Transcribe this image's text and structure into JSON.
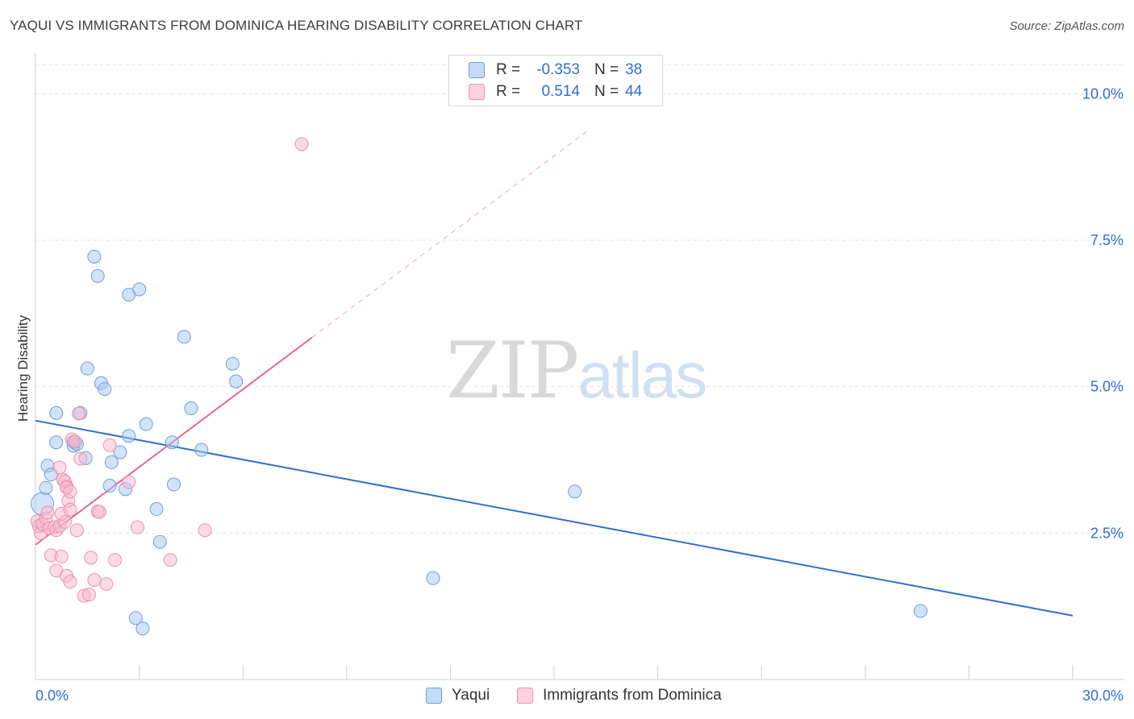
{
  "header": {
    "title": "YAQUI VS IMMIGRANTS FROM DOMINICA HEARING DISABILITY CORRELATION CHART",
    "source": "Source: ZipAtlas.com"
  },
  "watermark": {
    "zip": "ZIP",
    "atlas": "atlas"
  },
  "legend": {
    "r_label": "R =",
    "n_label": "N =",
    "rows": [
      {
        "r": "-0.353",
        "n": "38"
      },
      {
        "r": "0.514",
        "n": "44"
      }
    ]
  },
  "colors": {
    "yaqui_fill": "#a8c8ef",
    "yaqui_stroke": "#6a9fe0",
    "yaqui_line": "#2f6fce",
    "dominica_fill": "#f7b8cb",
    "dominica_stroke": "#ee8fae",
    "dominica_line": "#e8668f",
    "grid": "#e4e4e4",
    "tick_text": "#2f6fce"
  },
  "chart_data": {
    "type": "scatter",
    "title": "YAQUI VS IMMIGRANTS FROM DOMINICA HEARING DISABILITY CORRELATION CHART",
    "xlabel": "",
    "ylabel": "Hearing Disability",
    "xlim": [
      0,
      30
    ],
    "ylim": [
      0,
      10.5
    ],
    "x_tick_labels": [
      "0.0%",
      "30.0%"
    ],
    "y_ticks": [
      2.5,
      5.0,
      7.5,
      10.0
    ],
    "y_tick_labels": [
      "2.5%",
      "5.0%",
      "7.5%",
      "10.0%"
    ],
    "series": [
      {
        "name": "Yaqui",
        "r": -0.353,
        "n": 38,
        "trend": {
          "x": [
            0,
            30
          ],
          "y": [
            4.42,
            1.09
          ]
        },
        "points": [
          [
            0.2,
            3.0
          ],
          [
            0.3,
            3.27
          ],
          [
            0.35,
            3.65
          ],
          [
            0.45,
            3.5
          ],
          [
            0.6,
            4.55
          ],
          [
            0.6,
            4.05
          ],
          [
            1.1,
            3.99
          ],
          [
            1.2,
            4.02
          ],
          [
            1.1,
            4.06
          ],
          [
            1.3,
            4.55
          ],
          [
            1.45,
            3.78
          ],
          [
            1.5,
            5.31
          ],
          [
            1.7,
            7.22
          ],
          [
            1.8,
            6.89
          ],
          [
            1.9,
            5.06
          ],
          [
            2.0,
            4.96
          ],
          [
            2.2,
            3.71
          ],
          [
            2.15,
            3.31
          ],
          [
            2.45,
            3.88
          ],
          [
            2.6,
            3.25
          ],
          [
            2.7,
            4.16
          ],
          [
            2.7,
            6.57
          ],
          [
            3.0,
            6.66
          ],
          [
            3.2,
            4.36
          ],
          [
            3.5,
            2.91
          ],
          [
            3.6,
            2.35
          ],
          [
            2.9,
            1.05
          ],
          [
            3.1,
            0.87
          ],
          [
            3.95,
            4.05
          ],
          [
            4.0,
            3.33
          ],
          [
            4.3,
            5.85
          ],
          [
            4.5,
            4.63
          ],
          [
            4.8,
            3.92
          ],
          [
            5.7,
            5.39
          ],
          [
            5.8,
            5.09
          ],
          [
            11.5,
            1.73
          ],
          [
            15.6,
            3.21
          ],
          [
            25.6,
            1.17
          ]
        ]
      },
      {
        "name": "Immigrants from Dominica",
        "r": 0.514,
        "n": 44,
        "trend": {
          "x": [
            0,
            8.0
          ],
          "y": [
            2.3,
            5.84
          ]
        },
        "trend_dashed": {
          "x": [
            8.0,
            16.0
          ],
          "y": [
            5.84,
            9.38
          ]
        },
        "points": [
          [
            0.05,
            2.7
          ],
          [
            0.1,
            2.62
          ],
          [
            0.15,
            2.5
          ],
          [
            0.2,
            2.65
          ],
          [
            0.3,
            2.75
          ],
          [
            0.35,
            2.85
          ],
          [
            0.4,
            2.58
          ],
          [
            0.45,
            2.12
          ],
          [
            0.55,
            2.6
          ],
          [
            0.6,
            2.55
          ],
          [
            0.7,
            2.62
          ],
          [
            0.75,
            2.1
          ],
          [
            0.6,
            1.86
          ],
          [
            0.85,
            2.69
          ],
          [
            0.9,
            3.3
          ],
          [
            0.95,
            3.05
          ],
          [
            0.75,
            2.83
          ],
          [
            0.7,
            3.62
          ],
          [
            0.8,
            3.41
          ],
          [
            0.85,
            3.38
          ],
          [
            0.9,
            3.28
          ],
          [
            1.0,
            3.21
          ],
          [
            0.9,
            1.77
          ],
          [
            1.0,
            1.67
          ],
          [
            1.0,
            2.9
          ],
          [
            1.05,
            4.1
          ],
          [
            1.15,
            4.06
          ],
          [
            1.25,
            4.54
          ],
          [
            1.3,
            3.77
          ],
          [
            1.4,
            1.43
          ],
          [
            1.55,
            1.45
          ],
          [
            1.6,
            2.08
          ],
          [
            1.7,
            1.7
          ],
          [
            1.8,
            2.87
          ],
          [
            1.85,
            2.86
          ],
          [
            2.05,
            1.63
          ],
          [
            2.15,
            4.0
          ],
          [
            2.3,
            2.04
          ],
          [
            2.7,
            3.37
          ],
          [
            2.95,
            2.6
          ],
          [
            3.9,
            2.04
          ],
          [
            4.9,
            2.55
          ],
          [
            7.7,
            9.14
          ],
          [
            1.2,
            2.55
          ]
        ]
      }
    ]
  },
  "bottom_legend": {
    "items": [
      {
        "label": "Yaqui"
      },
      {
        "label": "Immigrants from Dominica"
      }
    ]
  }
}
